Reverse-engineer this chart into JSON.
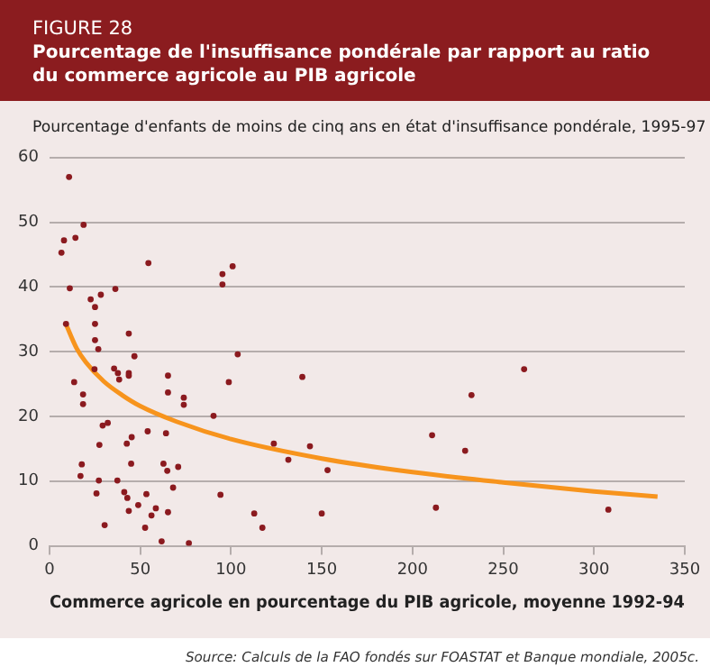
{
  "chart_data": {
    "type": "scatter",
    "title": "FIGURE 28",
    "subtitle": "Pourcentage de l'insuffisance pondérale par rapport au ratio du commerce agricole au PIB agricole",
    "ylabel": "Pourcentage d'enfants de moins de cinq ans en état d'insuffisance pondérale, 1995-97",
    "xlabel": "Commerce agricole en pourcentage du PIB agricole, moyenne 1992-94",
    "annotations": [
      "Source: Calculs de la FAO fondés sur FOASTAT et Banque mondiale, 2005c."
    ],
    "xlim": [
      0,
      350
    ],
    "xticks": [
      0,
      50,
      100,
      150,
      200,
      250,
      300,
      350
    ],
    "ylim": [
      0,
      60
    ],
    "yticks": [
      0,
      10,
      20,
      30,
      40,
      50,
      60
    ],
    "grid": "y",
    "legend": false,
    "marker": "circle",
    "series": [
      {
        "color": "#8b1a1f",
        "x": [
          10.8,
          18.8,
          8,
          14.3,
          6.6,
          54.5,
          95.3,
          100.9,
          95.3,
          11.2,
          22.7,
          28.3,
          36.3,
          25.1,
          9.1,
          25.1,
          43.7,
          25.1,
          26.9,
          46.8,
          103.7,
          24.8,
          13.6,
          35.6,
          37.7,
          43.7,
          38.4,
          43.7,
          65.3,
          18.5,
          18.5,
          65.3,
          74,
          74,
          98.8,
          90.4,
          29.3,
          32.1,
          54.1,
          64.2,
          45.3,
          42.6,
          27.5,
          17.8,
          45,
          62.8,
          17.1,
          27.2,
          37.4,
          70.9,
          64.9,
          68.1,
          25.9,
          41.2,
          42.9,
          53.4,
          94.2,
          48.9,
          58.6,
          43.7,
          56.2,
          65.3,
          112.8,
          117.3,
          30.4,
          52.7,
          61.8,
          76.8,
          139.3,
          261.5,
          232.5,
          210.8,
          229,
          123.6,
          143.5,
          131.6,
          153.2,
          150,
          212.9,
          307.9
        ],
        "values": [
          57,
          49.6,
          47.2,
          47.6,
          45.3,
          43.7,
          42,
          43.2,
          40.4,
          39.8,
          38.1,
          38.8,
          39.7,
          36.9,
          34.3,
          34.3,
          32.8,
          31.8,
          30.4,
          29.3,
          29.6,
          27.3,
          25.3,
          27.4,
          26.7,
          26.7,
          25.7,
          26.3,
          26.3,
          23.4,
          21.9,
          23.7,
          22.9,
          21.8,
          25.3,
          20.1,
          18.6,
          19,
          17.7,
          17.4,
          16.8,
          15.8,
          15.6,
          12.6,
          12.7,
          12.7,
          10.8,
          10.1,
          10.1,
          12.2,
          11.6,
          9,
          8.1,
          8.3,
          7.4,
          8,
          7.9,
          6.3,
          5.8,
          5.4,
          4.7,
          5.2,
          5,
          2.8,
          3.2,
          2.8,
          0.7,
          0.4,
          26.1,
          27.3,
          23.3,
          17.1,
          14.7,
          15.8,
          15.4,
          13.3,
          11.7,
          5,
          5.9,
          5.6
        ]
      },
      {
        "type": "line",
        "color": "#f7941d",
        "marker": "none",
        "x": [
          9,
          15,
          20,
          30,
          40,
          50,
          70,
          100,
          150,
          200,
          250,
          300,
          335
        ],
        "values": [
          34.3,
          30.5,
          28.4,
          25.4,
          23.3,
          21.6,
          19.2,
          16.5,
          13.5,
          11.4,
          9.8,
          8.4,
          7.6
        ]
      }
    ]
  }
}
